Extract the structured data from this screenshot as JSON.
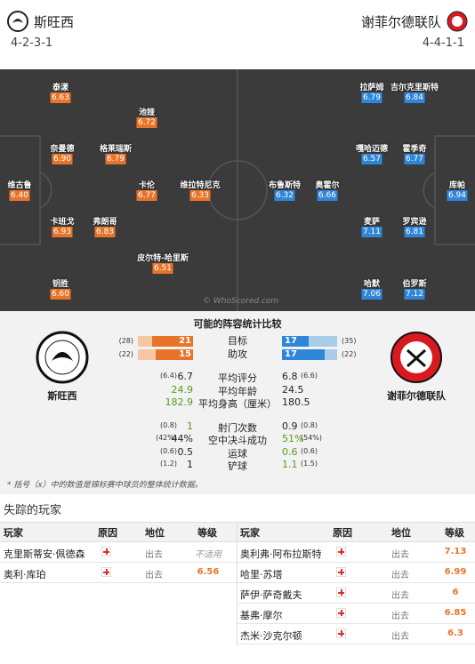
{
  "header": {
    "home": {
      "name": "斯旺西",
      "formation": "4-2-3-1"
    },
    "away": {
      "name": "谢菲尔德联队",
      "formation": "4-4-1-1"
    }
  },
  "pitch": {
    "watermark": "© WhoScored.com",
    "home": [
      {
        "name": "泰漾",
        "rating": 6.63
      },
      {
        "name": "池娅",
        "rating": 6.72
      },
      {
        "name": "奈曼德",
        "rating": 6.9
      },
      {
        "name": "格莱瑞斯",
        "rating": 6.79
      },
      {
        "name": "维古鲁",
        "rating": 6.4
      },
      {
        "name": "卡伦",
        "rating": 6.77
      },
      {
        "name": "维拉特尼克",
        "rating": 6.33
      },
      {
        "name": "卡班戈",
        "rating": 6.93
      },
      {
        "name": "弗朗哥",
        "rating": 6.83
      },
      {
        "name": "皮尔特-哈里斯",
        "rating": 6.51
      },
      {
        "name": "钥胜",
        "rating": 6.6
      }
    ],
    "away": [
      {
        "name": "拉萨姆",
        "rating": 6.79
      },
      {
        "name": "吉尔克里斯特",
        "rating": 6.84
      },
      {
        "name": "嘎哈迈德",
        "rating": 6.57
      },
      {
        "name": "霍季奇",
        "rating": 6.77
      },
      {
        "name": "布鲁斯特",
        "rating": 6.32
      },
      {
        "name": "奥霍尔",
        "rating": 6.66
      },
      {
        "name": "库帕",
        "rating": 6.94
      },
      {
        "name": "麦萨",
        "rating": 7.11
      },
      {
        "name": "罗宾逊",
        "rating": 6.81
      },
      {
        "name": "哈默",
        "rating": 7.06
      },
      {
        "name": "伯罗斯",
        "rating": 7.12
      }
    ]
  },
  "comparison": {
    "title": "可能的阵容统计比较",
    "home_team": "斯旺西",
    "away_team": "谢菲尔德联队",
    "bars": [
      {
        "label": "目标",
        "home": 21,
        "home_season": 28,
        "away": 17,
        "away_season": 35
      },
      {
        "label": "助攻",
        "home": 15,
        "home_season": 22,
        "away": 17,
        "away_season": 22
      }
    ],
    "stats": [
      {
        "label": "平均评分",
        "home": 6.7,
        "home_season": 6.4,
        "away": 6.8,
        "away_season": 6.6
      },
      {
        "label": "平均年龄",
        "home": 24.9,
        "away": 24.5,
        "highlight": "home"
      },
      {
        "label": "平均身高（厘米）",
        "home": 182.9,
        "away": 180.5,
        "highlight": "home"
      },
      {
        "label": "射门次数",
        "home": 1,
        "home_season": 0.8,
        "away": 0.9,
        "away_season": 0.8,
        "highlight": "home",
        "gap": true
      },
      {
        "label": "空中决斗成功",
        "home": "44%",
        "home_season": "42%",
        "away": "51%",
        "away_season": "54%",
        "highlight": "away"
      },
      {
        "label": "运球",
        "home": 0.5,
        "home_season": 0.6,
        "away": 0.6,
        "away_season": 0.6,
        "highlight": "away"
      },
      {
        "label": "铲球",
        "home": 1,
        "home_season": 1.2,
        "away": 1.1,
        "away_season": 1.5,
        "highlight": "away"
      }
    ],
    "note": "* 括号（x）中的数值是锦标赛中球员的整体统计数据。"
  },
  "missing": {
    "title": "失踪的玩家",
    "columns": [
      "玩家",
      "原因",
      "地位",
      "等级"
    ],
    "home": [
      {
        "player": "克里斯蒂安·佩德森",
        "status": "出去",
        "rating": "不适用"
      },
      {
        "player": "奥利·库珀",
        "status": "出去",
        "rating": 6.56
      }
    ],
    "away": [
      {
        "player": "奥利弗·阿布拉斯特",
        "status": "出去",
        "rating": 7.13
      },
      {
        "player": "哈里·苏塔",
        "status": "出去",
        "rating": 6.99
      },
      {
        "player": "萨伊·萨奇戴夫",
        "status": "出去",
        "rating": 6
      },
      {
        "player": "基弗·摩尔",
        "status": "出去",
        "rating": 6.85
      },
      {
        "player": "杰米·沙克尔顿",
        "status": "出去",
        "rating": 6.3
      }
    ]
  }
}
